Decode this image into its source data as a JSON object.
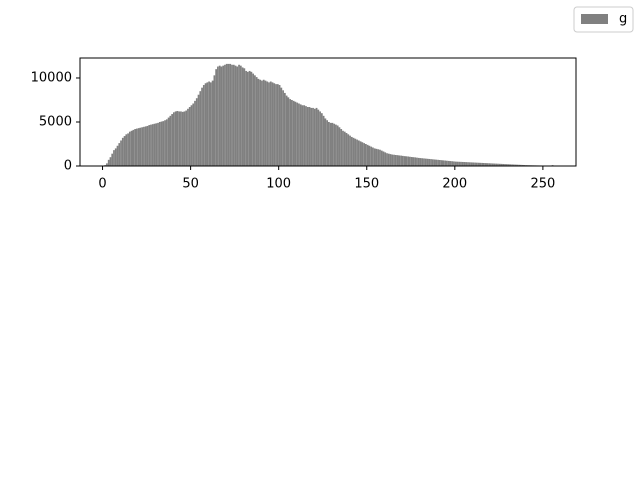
{
  "chart_data": {
    "type": "histogram",
    "bins": [
      0,
      1,
      2,
      3,
      4,
      5,
      6,
      7,
      8,
      9,
      10,
      11,
      12,
      13,
      14,
      15,
      16,
      17,
      18,
      19,
      20,
      21,
      22,
      23,
      24,
      25,
      26,
      27,
      28,
      29,
      30,
      31,
      32,
      33,
      34,
      35,
      36,
      37,
      38,
      39,
      40,
      41,
      42,
      43,
      44,
      45,
      46,
      47,
      48,
      49,
      50,
      51,
      52,
      53,
      54,
      55,
      56,
      57,
      58,
      59,
      60,
      61,
      62,
      63,
      64,
      65,
      66,
      67,
      68,
      69,
      70,
      71,
      72,
      73,
      74,
      75,
      76,
      77,
      78,
      79,
      80,
      81,
      82,
      83,
      84,
      85,
      86,
      87,
      88,
      89,
      90,
      91,
      92,
      93,
      94,
      95,
      96,
      97,
      98,
      99,
      100,
      101,
      102,
      103,
      104,
      105,
      106,
      107,
      108,
      109,
      110,
      111,
      112,
      113,
      114,
      115,
      116,
      117,
      118,
      119,
      120,
      121,
      122,
      123,
      124,
      125,
      126,
      127,
      128,
      129,
      130,
      131,
      132,
      133,
      134,
      135,
      136,
      137,
      138,
      139,
      140,
      141,
      142,
      143,
      144,
      145,
      146,
      147,
      148,
      149,
      150,
      151,
      152,
      153,
      154,
      155,
      156,
      157,
      158,
      159,
      160,
      161,
      162,
      163,
      164,
      165,
      166,
      167,
      168,
      169,
      170,
      171,
      172,
      173,
      174,
      175,
      176,
      177,
      178,
      179,
      180,
      181,
      182,
      183,
      184,
      185,
      186,
      187,
      188,
      189,
      190,
      191,
      192,
      193,
      194,
      195,
      196,
      197,
      198,
      199,
      200,
      201,
      202,
      203,
      204,
      205,
      206,
      207,
      208,
      209,
      210,
      211,
      212,
      213,
      214,
      215,
      216,
      217,
      218,
      219,
      220,
      221,
      222,
      223,
      224,
      225,
      226,
      227,
      228,
      229,
      230,
      231,
      232,
      233,
      234,
      235,
      236,
      237,
      238,
      239,
      240,
      241,
      242,
      243,
      244,
      245,
      246,
      247,
      248,
      249,
      250,
      251,
      252,
      253,
      254,
      255,
      256
    ],
    "series": [
      {
        "name": "g",
        "color": "#808080",
        "values": [
          0,
          100,
          300,
          700,
          1000,
          1400,
          1800,
          2000,
          2300,
          2600,
          2900,
          3200,
          3400,
          3600,
          3700,
          3900,
          4000,
          4100,
          4200,
          4250,
          4300,
          4350,
          4400,
          4450,
          4500,
          4550,
          4650,
          4700,
          4750,
          4800,
          4850,
          4900,
          5000,
          5050,
          5100,
          5200,
          5300,
          5500,
          5700,
          5900,
          6100,
          6200,
          6250,
          6200,
          6200,
          6150,
          6200,
          6300,
          6500,
          6700,
          6900,
          7100,
          7400,
          7700,
          8100,
          8500,
          8900,
          9200,
          9400,
          9500,
          9600,
          9500,
          9700,
          10300,
          11000,
          11300,
          11400,
          11300,
          11400,
          11500,
          11600,
          11600,
          11600,
          11500,
          11500,
          11400,
          11300,
          11500,
          11400,
          11200,
          11100,
          10800,
          10700,
          10800,
          10700,
          10500,
          10300,
          10100,
          9900,
          9800,
          9700,
          9800,
          9700,
          9600,
          9500,
          9600,
          9500,
          9400,
          9300,
          9300,
          9200,
          8900,
          8600,
          8300,
          8000,
          7800,
          7600,
          7500,
          7400,
          7300,
          7200,
          7100,
          7000,
          6900,
          6900,
          6800,
          6700,
          6700,
          6600,
          6600,
          6500,
          6600,
          6400,
          6200,
          6000,
          5700,
          5400,
          5200,
          5000,
          4900,
          4900,
          4800,
          4700,
          4600,
          4400,
          4200,
          4000,
          3900,
          3750,
          3600,
          3450,
          3300,
          3200,
          3100,
          3000,
          2900,
          2800,
          2700,
          2600,
          2500,
          2400,
          2300,
          2200,
          2100,
          2000,
          1950,
          1900,
          1850,
          1750,
          1650,
          1550,
          1450,
          1400,
          1350,
          1300,
          1280,
          1250,
          1230,
          1200,
          1180,
          1150,
          1120,
          1100,
          1080,
          1050,
          1020,
          1000,
          980,
          950,
          920,
          900,
          880,
          860,
          840,
          820,
          800,
          780,
          760,
          740,
          720,
          700,
          680,
          660,
          640,
          620,
          600,
          580,
          560,
          540,
          520,
          500,
          490,
          480,
          470,
          460,
          450,
          440,
          430,
          420,
          410,
          400,
          390,
          380,
          370,
          360,
          350,
          340,
          330,
          320,
          310,
          300,
          290,
          280,
          270,
          260,
          250,
          240,
          230,
          220,
          210,
          200,
          190,
          180,
          170,
          160,
          150,
          140,
          130,
          120,
          110,
          100,
          95,
          90,
          85,
          80,
          75,
          70,
          65,
          60,
          55,
          50,
          45,
          40,
          35,
          30,
          100
        ]
      }
    ],
    "xlim": [
      -12.8,
      268.8
    ],
    "ylim": [
      0,
      12270
    ],
    "xticks": [
      0,
      50,
      100,
      150,
      200,
      250
    ],
    "yticks": [
      0,
      5000,
      10000
    ],
    "legend": "upper right"
  }
}
